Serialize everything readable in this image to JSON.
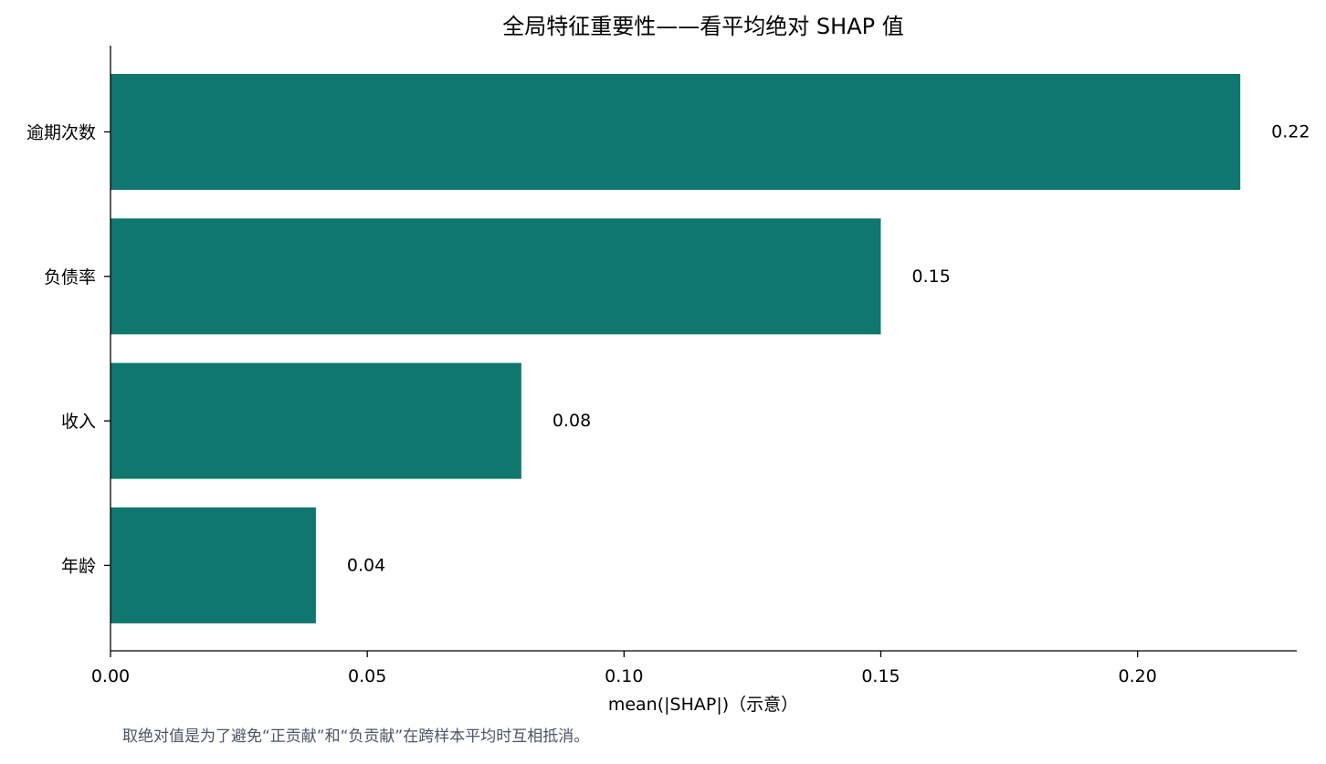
{
  "chart_data": {
    "type": "bar",
    "orientation": "horizontal",
    "title": "全局特征重要性——看平均绝对 SHAP 值",
    "xlabel": "mean(|SHAP|)（示意）",
    "ylabel": "",
    "categories": [
      "逾期次数",
      "负债率",
      "收入",
      "年龄"
    ],
    "values": [
      0.22,
      0.15,
      0.08,
      0.04
    ],
    "value_labels": [
      "0.22",
      "0.15",
      "0.08",
      "0.04"
    ],
    "xlim": [
      0,
      0.231
    ],
    "xticks": [
      0.0,
      0.05,
      0.1,
      0.15,
      0.2
    ],
    "xtick_labels": [
      "0.00",
      "0.05",
      "0.10",
      "0.15",
      "0.20"
    ],
    "bar_color": "#10776f",
    "grid": false,
    "legend": "none"
  },
  "footnote": {
    "text": "取绝对值是为了避免“正贡献”和“负贡献”在跨样本平均时互相抵消。",
    "color": "#4a5568"
  }
}
